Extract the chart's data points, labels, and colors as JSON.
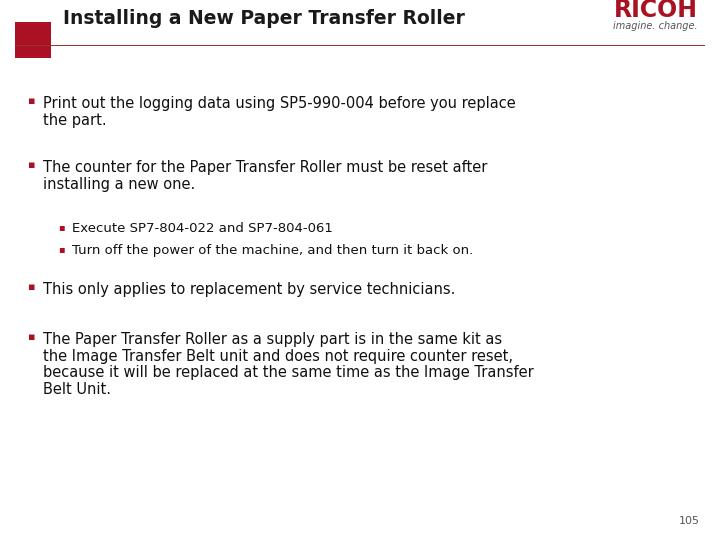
{
  "title": "Installing a New Paper Transfer Roller",
  "title_fontsize": 13.5,
  "title_color": "#1a1a1a",
  "red_square_color": "#aa1122",
  "ricoh_text": "RICOH",
  "ricoh_subtext": "imagine. change.",
  "ricoh_color": "#aa1122",
  "ricoh_sub_color": "#555555",
  "divider_color": "#993333",
  "page_number": "105",
  "background_color": "#ffffff",
  "bullet_color": "#aa1122",
  "text_color": "#111111",
  "body_fontsize": 10.5,
  "sub_fontsize": 9.5,
  "entries": [
    {
      "level": 1,
      "lines": [
        "Print out the logging data using SP5-990-004 before you replace",
        "the part."
      ]
    },
    {
      "level": 1,
      "lines": [
        "The counter for the Paper Transfer Roller must be reset after",
        "installing a new one."
      ]
    },
    {
      "level": 2,
      "lines": [
        "Execute SP7-804-022 and SP7-804-061"
      ]
    },
    {
      "level": 2,
      "lines": [
        "Turn off the power of the machine, and then turn it back on."
      ]
    },
    {
      "level": 1,
      "lines": [
        "This only applies to replacement by service technicians."
      ]
    },
    {
      "level": 1,
      "lines": [
        "The Paper Transfer Roller as a supply part is in the same kit as",
        "the Image Transfer Belt unit and does not require counter reset,",
        "because it will be replaced at the same time as the Image Transfer",
        "Belt Unit."
      ]
    }
  ]
}
